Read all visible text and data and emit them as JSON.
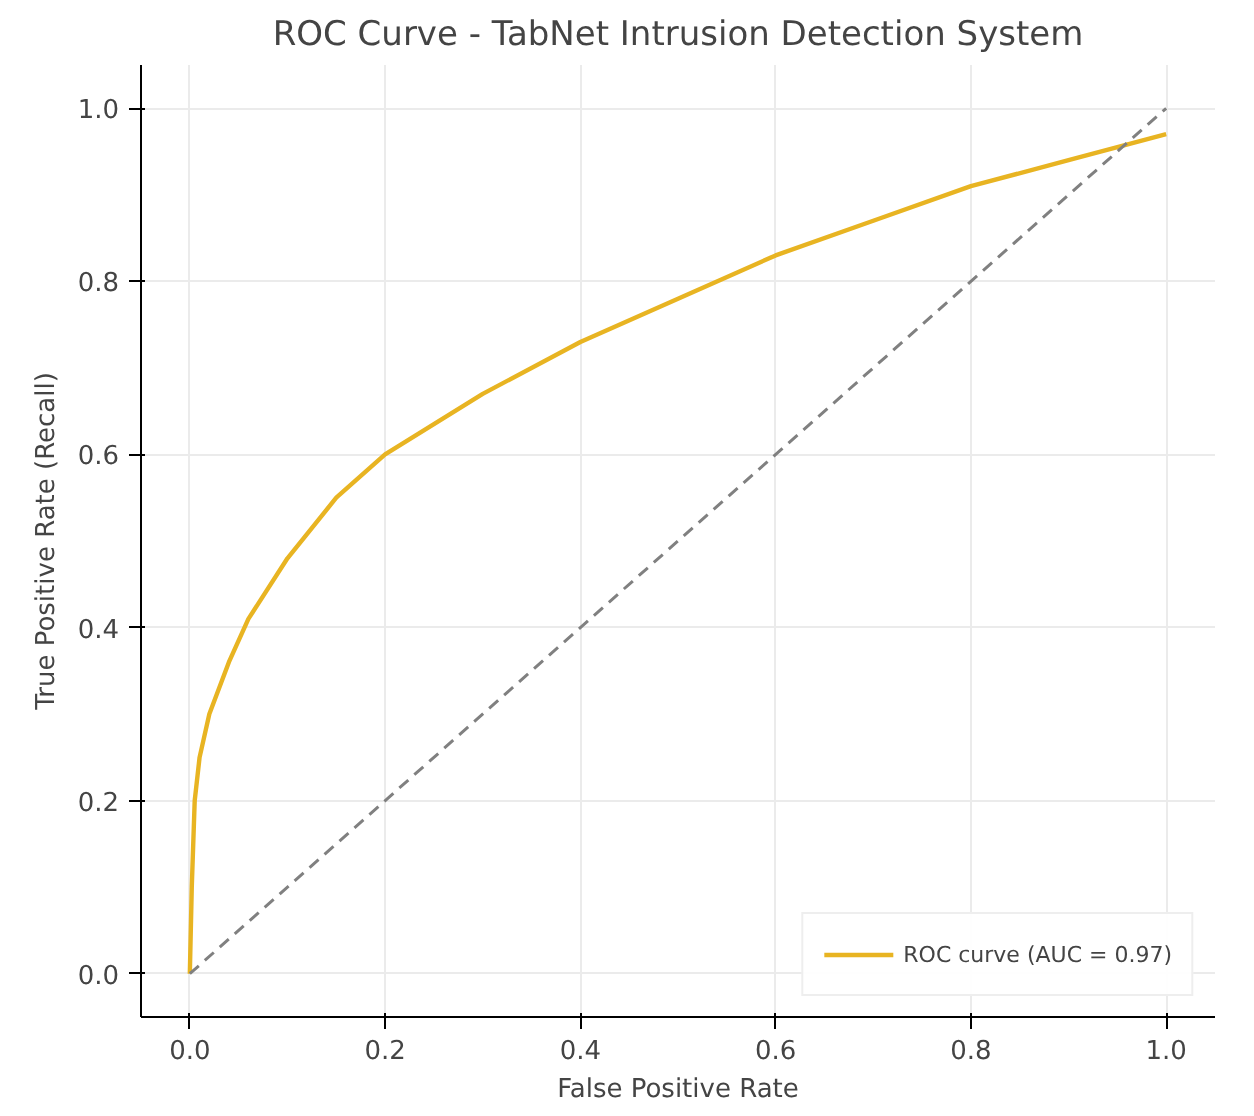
{
  "chart_data": {
    "type": "line",
    "title": "ROC Curve - TabNet Intrusion Detection System",
    "xlabel": "False Positive Rate",
    "ylabel": "True Positive Rate (Recall)",
    "xlim": [
      -0.05,
      1.05
    ],
    "ylim": [
      -0.05,
      1.05
    ],
    "xticks": [
      {
        "value": 0,
        "label": "0.0"
      },
      0.2,
      0.4,
      0.6,
      0.8,
      {
        "value": 1,
        "label": "1.0"
      }
    ],
    "yticks": [
      {
        "value": 0,
        "label": "0.0"
      },
      0.2,
      0.4,
      0.6,
      0.8,
      {
        "value": 1,
        "label": "1.0"
      }
    ],
    "grid": true,
    "legend": "bottom right",
    "series": [
      {
        "name": "ROC curve (AUC = 0.97)",
        "color": "#e8b422",
        "line_style": "solid",
        "x": [
          0,
          0.002,
          0.005,
          0.01,
          0.02,
          0.04,
          0.06,
          0.1,
          0.15,
          0.2,
          0.3,
          0.4,
          0.5,
          0.6,
          0.7,
          0.8,
          0.9,
          1.0
        ],
        "values": [
          0,
          0.1,
          0.2,
          0.25,
          0.3,
          0.36,
          0.41,
          0.48,
          0.55,
          0.6,
          0.67,
          0.73,
          0.78,
          0.83,
          0.87,
          0.91,
          0.94,
          0.97
        ]
      },
      {
        "color": "#808080",
        "line_style": "dashed",
        "x": [
          0,
          1
        ],
        "values": [
          0,
          1
        ]
      }
    ]
  }
}
